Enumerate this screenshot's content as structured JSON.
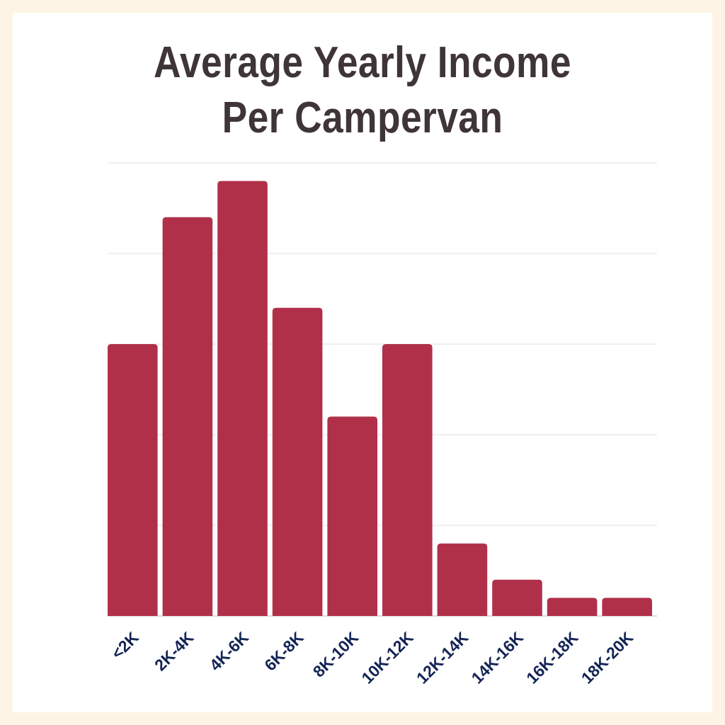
{
  "chart_data": {
    "type": "bar",
    "title": "Average Yearly Income Per Campervan",
    "title_lines": [
      "Average Yearly Income",
      "Per Campervan"
    ],
    "categories": [
      "<2K",
      "2K-4K",
      "4K-6K",
      "6K-8K",
      "8K-10K",
      "10K-12K",
      "12K-14K",
      "14K-16K",
      "16K-18K",
      "18K-20K"
    ],
    "values": [
      15,
      22,
      24,
      17,
      11,
      15,
      4,
      2,
      1,
      1
    ],
    "xlabel": "",
    "ylabel": "",
    "ylim": [
      0,
      25
    ],
    "y_grid_step": 5,
    "grid": true,
    "y_tick_labels_visible": false,
    "colors": {
      "bar": "#b0304a",
      "grid": "#e2e2e2",
      "axis": "#cfcfcf",
      "tick_label": "#142456",
      "title": "#3e3439",
      "background": "#fdf4e6",
      "panel": "#ffffff"
    }
  }
}
